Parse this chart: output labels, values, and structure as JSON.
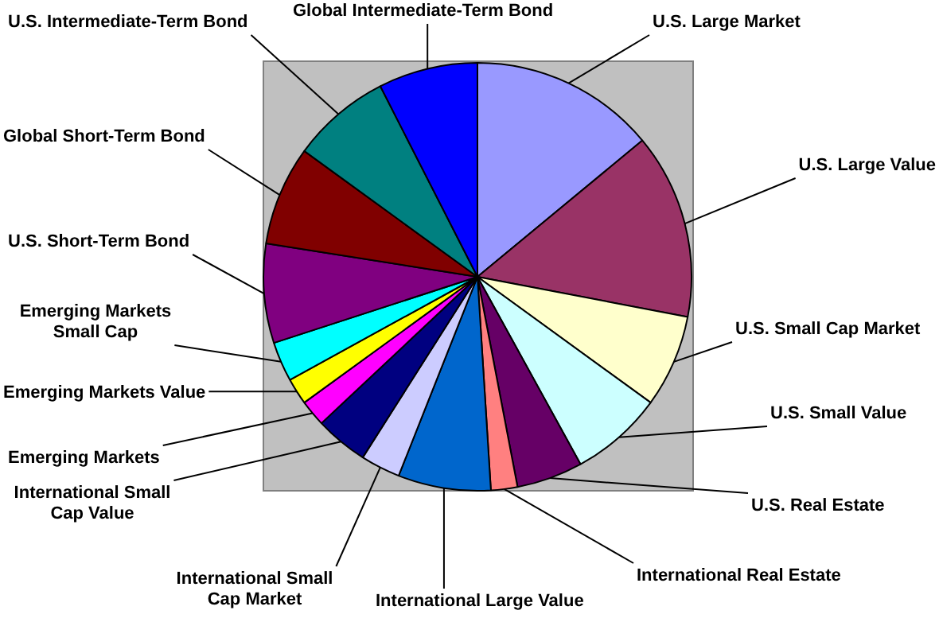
{
  "chart_data": {
    "type": "pie",
    "legend": false,
    "categories": [
      "U.S. Large Market",
      "U.S. Large Value",
      "U.S. Small Cap Market",
      "U.S. Small Value",
      "U.S. Real Estate",
      "International Real Estate",
      "International Large Value",
      "International Small Cap Market",
      "International Small Cap Value",
      "Emerging Markets",
      "Emerging Markets Value",
      "Emerging Markets Small Cap",
      "U.S. Short-Term Bond",
      "Global Short-Term Bond",
      "U.S. Intermediate-Term Bond",
      "Global Intermediate-Term Bond"
    ],
    "values": [
      14,
      14,
      7,
      7,
      5,
      2,
      7,
      3,
      4,
      2,
      2,
      3,
      7.5,
      7.5,
      7.5,
      7.5
    ],
    "colors": [
      "#9999ff",
      "#993366",
      "#ffffcc",
      "#ccffff",
      "#660066",
      "#ff8080",
      "#0066cc",
      "#ccccff",
      "#000080",
      "#ff00ff",
      "#ffff00",
      "#00ffff",
      "#800080",
      "#800000",
      "#008080",
      "#0000ff"
    ]
  }
}
